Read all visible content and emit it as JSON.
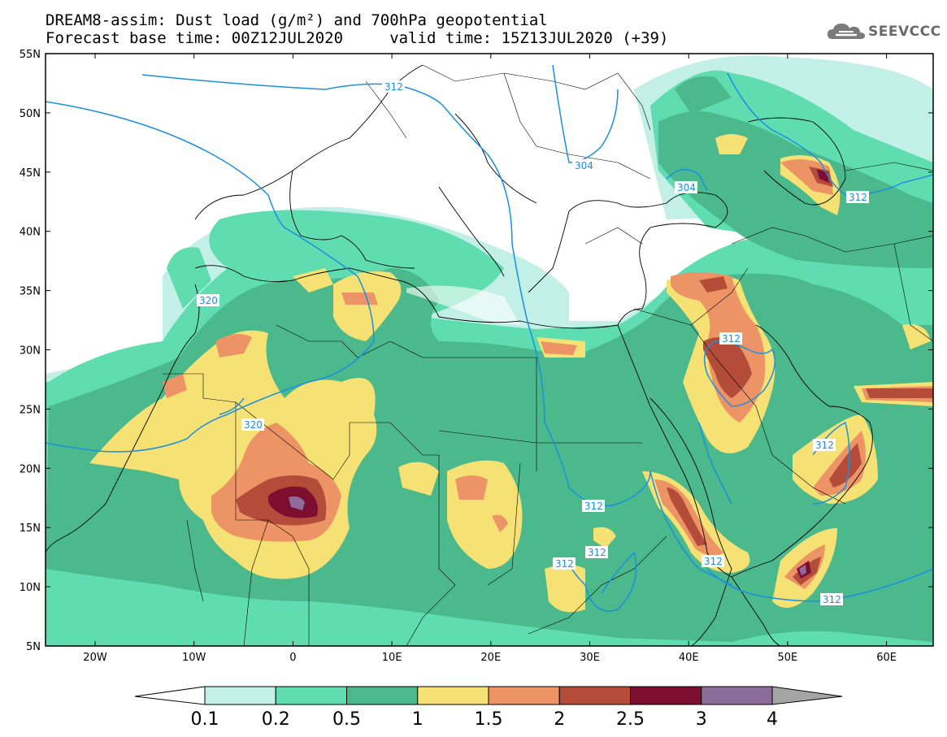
{
  "title": {
    "line1": "DREAM8-assim: Dust load (g/m²) and 700hPa geopotential",
    "line2": "Forecast base time: 00Z12JUL2020     valid time: 15Z13JUL2020 (+39)"
  },
  "logo": {
    "text": "SEEVCCC",
    "icon": "cloud-logo-icon"
  },
  "map": {
    "lat_labels": [
      "55N",
      "50N",
      "45N",
      "40N",
      "35N",
      "30N",
      "25N",
      "20N",
      "15N",
      "10N",
      "5N"
    ],
    "lon_labels": [
      "20W",
      "10W",
      "0",
      "10E",
      "20E",
      "30E",
      "40E",
      "50E",
      "60E"
    ],
    "contour_labels": [
      "312",
      "304",
      "304",
      "312",
      "320",
      "320",
      "312",
      "312",
      "312",
      "312",
      "312",
      "312",
      "312"
    ],
    "contour_color": "#1b8fe0"
  },
  "colorbar": {
    "ticks": [
      "0.1",
      "0.2",
      "0.5",
      "1",
      "1.5",
      "2",
      "2.5",
      "3",
      "4"
    ],
    "colors": [
      "#c3f0e6",
      "#5fdcb0",
      "#4bb98c",
      "#f6e175",
      "#ec9466",
      "#b44c3a",
      "#7c0f30",
      "#8e6c9a"
    ],
    "under_color": "#ffffff",
    "over_color": "#a5a5a5"
  }
}
